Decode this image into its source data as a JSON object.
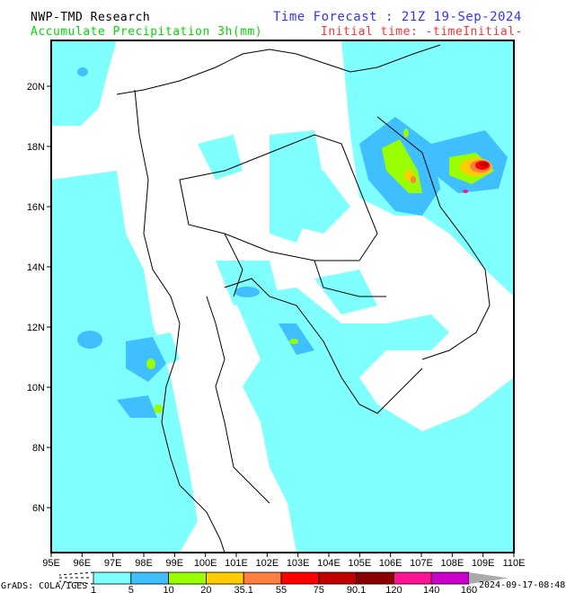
{
  "header": {
    "title": "NWP-TMD Research",
    "variable": "Accumulate Precipitation 3h(mm)",
    "forecast_time": "Time Forecast : 21Z 19-Sep-2024",
    "initial_time": "Initial time: -timeInitial-"
  },
  "colors": {
    "title": "#000000",
    "variable": "#00dd00",
    "forecast": "#3333ff",
    "initial": "#ff3333"
  },
  "map": {
    "lon_labels": [
      "95E",
      "96E",
      "97E",
      "98E",
      "99E",
      "100E",
      "101E",
      "102E",
      "103E",
      "104E",
      "105E",
      "106E",
      "107E",
      "108E",
      "109E",
      "110E"
    ],
    "lat_labels": [
      "6N",
      "8N",
      "10N",
      "12N",
      "14N",
      "16N",
      "18N",
      "20N"
    ]
  },
  "colorbar": {
    "labels": [
      "1",
      "5",
      "10",
      "20",
      "35.1",
      "55",
      "75",
      "90.1",
      "120",
      "140",
      "160"
    ],
    "colors": [
      "#80ffff",
      "#40bfff",
      "#99ff00",
      "#ffcc00",
      "#ff8040",
      "#ff0000",
      "#c00000",
      "#8b0000",
      "#ff1493",
      "#cc00cc"
    ]
  },
  "footer": {
    "credit": "GrADS: COLA/IGES",
    "timestamp": "2024-09-17-08:48"
  }
}
